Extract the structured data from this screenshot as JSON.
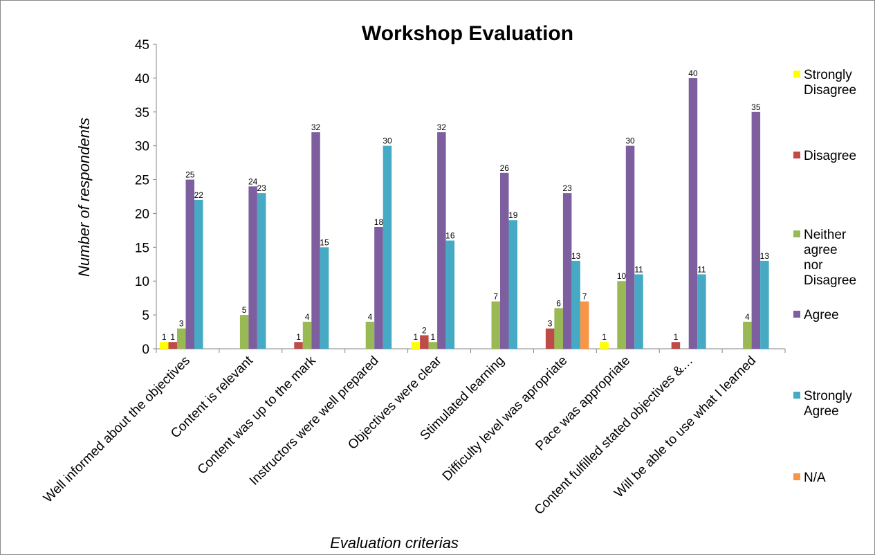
{
  "chart_data": {
    "type": "bar",
    "title": "Workshop Evaluation",
    "xlabel": "Evaluation criterias",
    "ylabel": "Number of respondents",
    "ylim": [
      0,
      45
    ],
    "ytick_step": 5,
    "grid": false,
    "legend_position": "right",
    "categories": [
      "Well informed about the objectives",
      "Content is relevant",
      "Content was up to the mark",
      "Instructors were well prepared",
      "Objectives were clear",
      "Stimulated learning",
      "Difficulty level was apropriate",
      "Pace  was appropriate",
      "Content fulfilled stated objectives &…",
      "Will be able to use what I learned"
    ],
    "series": [
      {
        "name": "Strongly Disagree",
        "legend_lines": [
          "Strongly",
          "Disagree"
        ],
        "color": "#ffff00",
        "values": [
          1,
          null,
          null,
          null,
          1,
          null,
          null,
          1,
          null,
          null
        ]
      },
      {
        "name": "Disagree",
        "legend_lines": [
          "Disagree"
        ],
        "color": "#be4b48",
        "values": [
          1,
          null,
          1,
          null,
          2,
          null,
          3,
          null,
          1,
          null
        ]
      },
      {
        "name": "Neither agree nor Disagree",
        "legend_lines": [
          "Neither",
          "agree",
          "nor",
          "Disagree"
        ],
        "color": "#98b954",
        "values": [
          3,
          5,
          4,
          4,
          1,
          7,
          6,
          10,
          null,
          4
        ]
      },
      {
        "name": "Agree",
        "legend_lines": [
          "Agree"
        ],
        "color": "#7d5fa0",
        "values": [
          25,
          24,
          32,
          18,
          32,
          26,
          23,
          30,
          40,
          35
        ]
      },
      {
        "name": "Strongly Agree",
        "legend_lines": [
          "Strongly",
          "Agree"
        ],
        "color": "#46aac5",
        "values": [
          22,
          23,
          15,
          30,
          16,
          19,
          13,
          11,
          11,
          13
        ]
      },
      {
        "name": "N/A",
        "legend_lines": [
          "N/A"
        ],
        "color": "#f79646",
        "values": [
          null,
          null,
          null,
          null,
          null,
          null,
          7,
          null,
          null,
          null
        ]
      }
    ]
  }
}
